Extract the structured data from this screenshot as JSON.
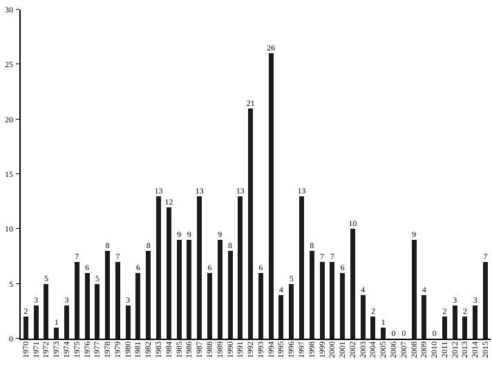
{
  "chart_data": {
    "type": "bar",
    "title": "",
    "xlabel": "",
    "ylabel": "",
    "categories": [
      "1970",
      "1971",
      "1972",
      "1973",
      "1974",
      "1975",
      "1976",
      "1977",
      "1978",
      "1979",
      "1980",
      "1981",
      "1982",
      "1983",
      "1984",
      "1985",
      "1986",
      "1987",
      "1988",
      "1989",
      "1990",
      "1991",
      "1992",
      "1993",
      "1994",
      "1995",
      "1996",
      "1997",
      "1998",
      "1999",
      "2000",
      "2001",
      "2002",
      "2003",
      "2004",
      "2005",
      "2006",
      "2007",
      "2008",
      "2009",
      "2010",
      "2011",
      "2012",
      "2013",
      "2014",
      "2015"
    ],
    "values": [
      2,
      3,
      5,
      1,
      3,
      7,
      6,
      5,
      8,
      7,
      3,
      6,
      8,
      13,
      12,
      9,
      9,
      13,
      6,
      9,
      8,
      13,
      21,
      6,
      26,
      4,
      5,
      13,
      8,
      7,
      7,
      6,
      10,
      4,
      2,
      1,
      0,
      0,
      9,
      4,
      0,
      2,
      3,
      2,
      3,
      7
    ],
    "ylim": [
      0,
      30
    ],
    "yticks": [
      0,
      5,
      10,
      15,
      20,
      25,
      30
    ],
    "bar_color": "#1b1b1b",
    "axis_color": "#000000",
    "grid": false,
    "legend_position": "none",
    "data_labels": true
  }
}
